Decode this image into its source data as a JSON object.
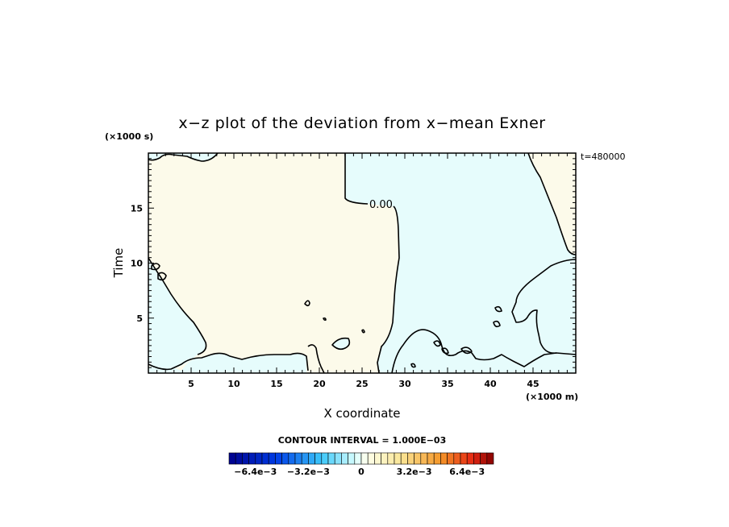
{
  "chart_data": {
    "type": "contour",
    "title": "x−z plot of the deviation from x−mean Exner",
    "xlabel": "X coordinate",
    "ylabel": "Time",
    "x_unit_label": "(×1000 m)",
    "y_unit_label": "(×1000 s)",
    "time_label": "t=480000",
    "xlim": [
      0,
      50
    ],
    "ylim": [
      0,
      20
    ],
    "x_ticks": [
      5,
      10,
      15,
      20,
      25,
      30,
      35,
      40,
      45
    ],
    "x_tick_labels": [
      "5",
      "10",
      "15",
      "20",
      "25",
      "30",
      "35",
      "40",
      "45"
    ],
    "y_ticks": [
      5,
      10,
      15
    ],
    "y_tick_labels": [
      "5",
      "10",
      "15"
    ],
    "contour_interval_label": "CONTOUR INTERVAL = 1.000E−03",
    "contour_label": "0.00",
    "contour_level": 0.0,
    "colorbar_labels": [
      "−6.4e−3",
      "−3.2e−3",
      "0",
      "3.2e−3",
      "6.4e−3"
    ],
    "colorbar_range": [
      -0.008,
      0.008
    ],
    "colorbar_steps": 40,
    "fill_colors": {
      "negative": "#e6fcfc",
      "positive": "#fcfaea"
    }
  }
}
